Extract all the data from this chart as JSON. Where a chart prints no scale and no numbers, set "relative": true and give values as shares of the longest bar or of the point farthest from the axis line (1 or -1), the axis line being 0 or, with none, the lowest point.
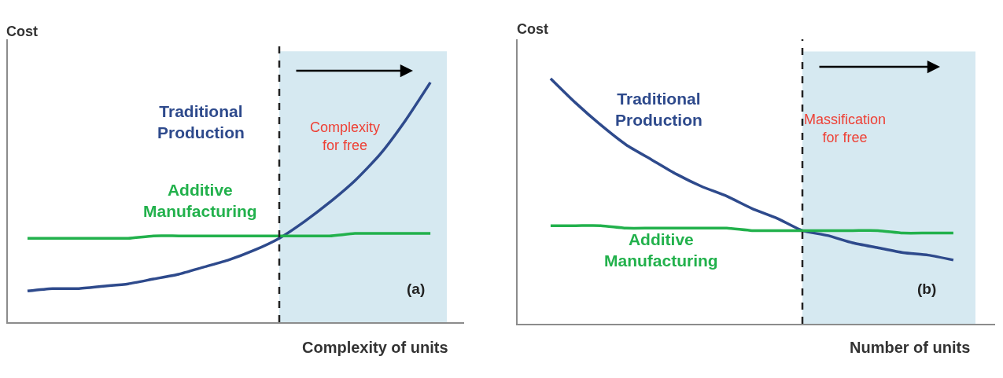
{
  "chart_data": [
    {
      "type": "line",
      "relative": true,
      "ylabel": "Cost",
      "xlabel": "Complexity of units",
      "categories": [
        null,
        null,
        null,
        null,
        null,
        null,
        null,
        null,
        null,
        null,
        null,
        null,
        null,
        null,
        null,
        null,
        null
      ],
      "series": [
        {
          "name": "Traditional Production",
          "color": "#2e4a8c",
          "values": [
            0.13,
            0.14,
            0.14,
            0.15,
            0.16,
            0.18,
            0.2,
            0.23,
            0.26,
            0.3,
            0.35,
            0.42,
            0.5,
            0.59,
            0.7,
            0.84,
            1
          ]
        },
        {
          "name": "Additive Manufacturing",
          "color": "#22b14c",
          "values": [
            0.35,
            0.35,
            0.35,
            0.35,
            0.35,
            0.36,
            0.36,
            0.36,
            0.36,
            0.36,
            0.36,
            0.36,
            0.36,
            0.37,
            0.37,
            0.37,
            0.37
          ]
        }
      ],
      "annotations": [
        "Complexity\nfor free",
        "(a)"
      ]
    },
    {
      "type": "line",
      "relative": true,
      "ylabel": "Cost",
      "xlabel": "Number of units",
      "categories": [
        null,
        null,
        null,
        null,
        null,
        null,
        null,
        null,
        null,
        null,
        null,
        null,
        null,
        null,
        null,
        null,
        null
      ],
      "series": [
        {
          "name": "Traditional Production",
          "color": "#2e4a8c",
          "values": [
            1,
            0.9,
            0.81,
            0.73,
            0.67,
            0.61,
            0.56,
            0.52,
            0.47,
            0.43,
            0.38,
            0.36,
            0.33,
            0.31,
            0.29,
            0.28,
            0.26
          ]
        },
        {
          "name": "Additive Manufacturing",
          "color": "#22b14c",
          "values": [
            0.4,
            0.4,
            0.4,
            0.39,
            0.39,
            0.39,
            0.39,
            0.39,
            0.38,
            0.38,
            0.38,
            0.38,
            0.38,
            0.38,
            0.37,
            0.37,
            0.37
          ]
        }
      ],
      "annotations": [
        "Massification\nfor free",
        "(b)"
      ]
    }
  ]
}
